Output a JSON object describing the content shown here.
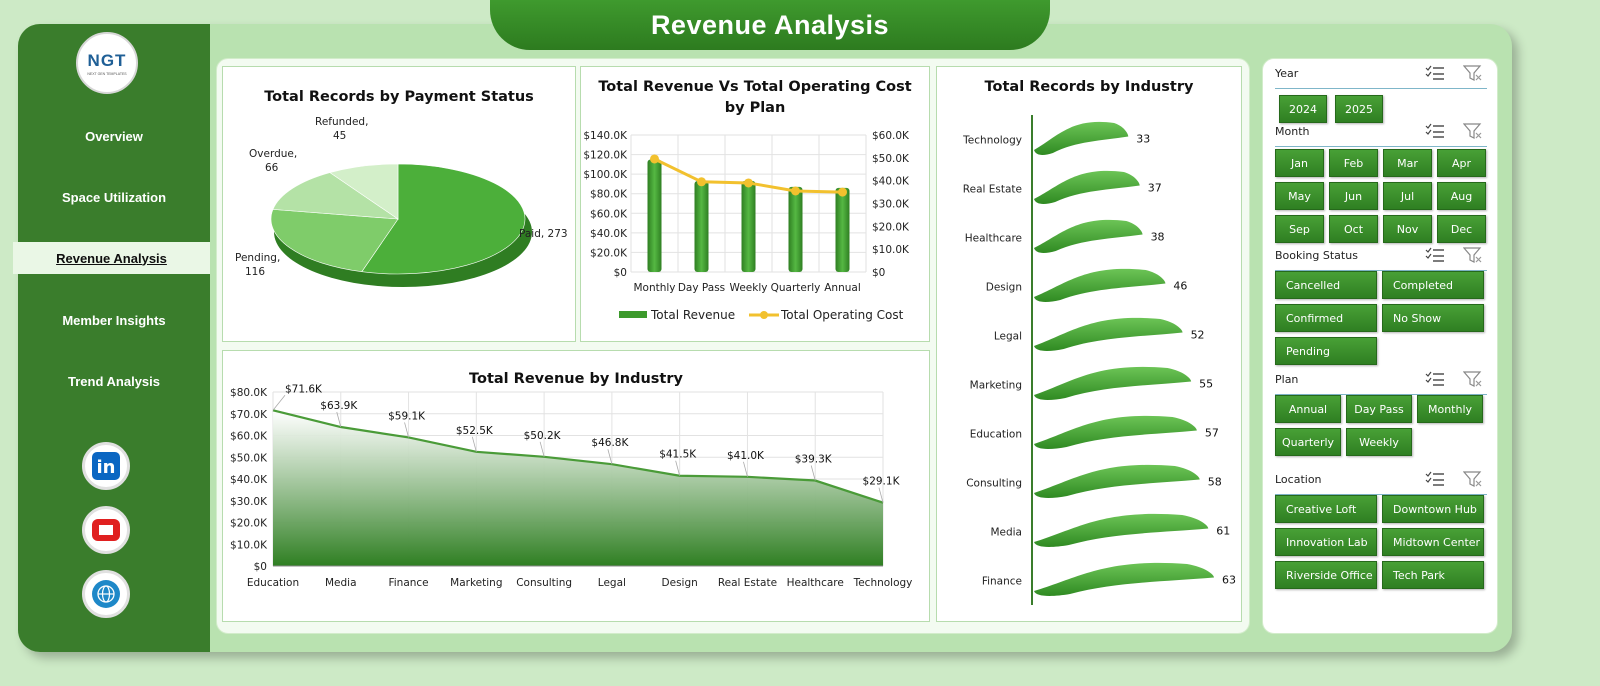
{
  "app": {
    "title": "Revenue Analysis"
  },
  "logo": {
    "text": "NGT",
    "subtext": "NEXT GEN TEMPLATES"
  },
  "sidebar": {
    "items": [
      {
        "label": "Overview",
        "active": false
      },
      {
        "label": "Space Utilization",
        "active": false
      },
      {
        "label": "Revenue Analysis",
        "active": true
      },
      {
        "label": "Member Insights",
        "active": false
      },
      {
        "label": "Trend Analysis",
        "active": false
      }
    ],
    "social": [
      {
        "name": "linkedin-icon",
        "label": "in"
      },
      {
        "name": "youtube-icon",
        "label": ""
      },
      {
        "name": "globe-icon",
        "label": ""
      }
    ]
  },
  "colors": {
    "sidebar": "#3a7d2c",
    "accent_green": "#3c9a2c",
    "cost_line": "#f2c12e",
    "background": "#cdeac6"
  },
  "charts": {
    "payment_status": {
      "title": "Total Records by Payment Status",
      "chart_data": {
        "type": "pie",
        "title": "Total Records by Payment Status",
        "slices": [
          {
            "name": "Paid",
            "value": 273
          },
          {
            "name": "Pending",
            "value": 116
          },
          {
            "name": "Overdue",
            "value": 66
          },
          {
            "name": "Refunded",
            "value": 45
          }
        ],
        "labels": [
          "Paid, 273",
          "Pending,",
          "116",
          "Overdue,",
          "66",
          "Refunded,",
          "45"
        ]
      }
    },
    "revenue_vs_cost": {
      "title_line1": "Total Revenue Vs Total Operating Cost",
      "title_line2": "by Plan",
      "chart_data": {
        "type": "bar",
        "categories": [
          "Monthly",
          "Day Pass",
          "Weekly",
          "Quarterly",
          "Annual"
        ],
        "series": [
          {
            "name": "Total Revenue",
            "type": "bar",
            "axis": "left",
            "values": [
              115000,
              93000,
              93000,
              87000,
              86000
            ]
          },
          {
            "name": "Total Operating Cost",
            "type": "line",
            "axis": "right",
            "values": [
              49500,
              39500,
              39000,
              35500,
              35000
            ]
          }
        ],
        "y_left_ticks": [
          "$0",
          "$20.0K",
          "$40.0K",
          "$60.0K",
          "$80.0K",
          "$100.0K",
          "$120.0K",
          "$140.0K"
        ],
        "y_right_ticks": [
          "$0",
          "$10.0K",
          "$20.0K",
          "$30.0K",
          "$40.0K",
          "$50.0K",
          "$60.0K"
        ],
        "ylim_left": [
          0,
          140000
        ],
        "ylim_right": [
          0,
          60000
        ],
        "legend": "bottom"
      }
    },
    "revenue_by_industry": {
      "title": "Total Revenue  by Industry",
      "chart_data": {
        "type": "area",
        "categories": [
          "Education",
          "Media",
          "Finance",
          "Marketing",
          "Consulting",
          "Legal",
          "Design",
          "Real Estate",
          "Healthcare",
          "Technology"
        ],
        "values": [
          71.6,
          63.9,
          59.1,
          52.5,
          50.2,
          46.8,
          41.5,
          41.0,
          39.3,
          29.1
        ],
        "data_labels": [
          "$71.6K",
          "$63.9K",
          "$59.1K",
          "$52.5K",
          "$50.2K",
          "$46.8K",
          "$41.5K",
          "$41.0K",
          "$39.3K",
          "$29.1K"
        ],
        "y_ticks": [
          "$0",
          "$10.0K",
          "$20.0K",
          "$30.0K",
          "$40.0K",
          "$50.0K",
          "$60.0K",
          "$70.0K",
          "$80.0K"
        ],
        "ylim": [
          0,
          80
        ]
      }
    },
    "records_by_industry": {
      "title": "Total Records by Industry",
      "chart_data": {
        "type": "bar",
        "orientation": "horizontal",
        "categories": [
          "Technology",
          "Real Estate",
          "Healthcare",
          "Design",
          "Legal",
          "Marketing",
          "Education",
          "Consulting",
          "Media",
          "Finance"
        ],
        "values": [
          33,
          37,
          38,
          46,
          52,
          55,
          57,
          58,
          61,
          63
        ]
      }
    }
  },
  "filters": {
    "groups": [
      {
        "title": "Year",
        "buttons": [
          "2024",
          "2025"
        ]
      },
      {
        "title": "Month",
        "buttons": [
          "Jan",
          "Feb",
          "Mar",
          "Apr",
          "May",
          "Jun",
          "Jul",
          "Aug",
          "Sep",
          "Oct",
          "Nov",
          "Dec"
        ]
      },
      {
        "title": "Booking Status",
        "buttons": [
          "Cancelled",
          "Completed",
          "Confirmed",
          "No Show",
          "Pending"
        ]
      },
      {
        "title": "Plan",
        "buttons": [
          "Annual",
          "Day Pass",
          "Monthly",
          "Quarterly",
          "Weekly"
        ]
      },
      {
        "title": "Location",
        "buttons": [
          "Creative Loft",
          "Downtown Hub",
          "Innovation Lab",
          "Midtown Center",
          "Riverside Office",
          "Tech Park"
        ]
      }
    ]
  }
}
